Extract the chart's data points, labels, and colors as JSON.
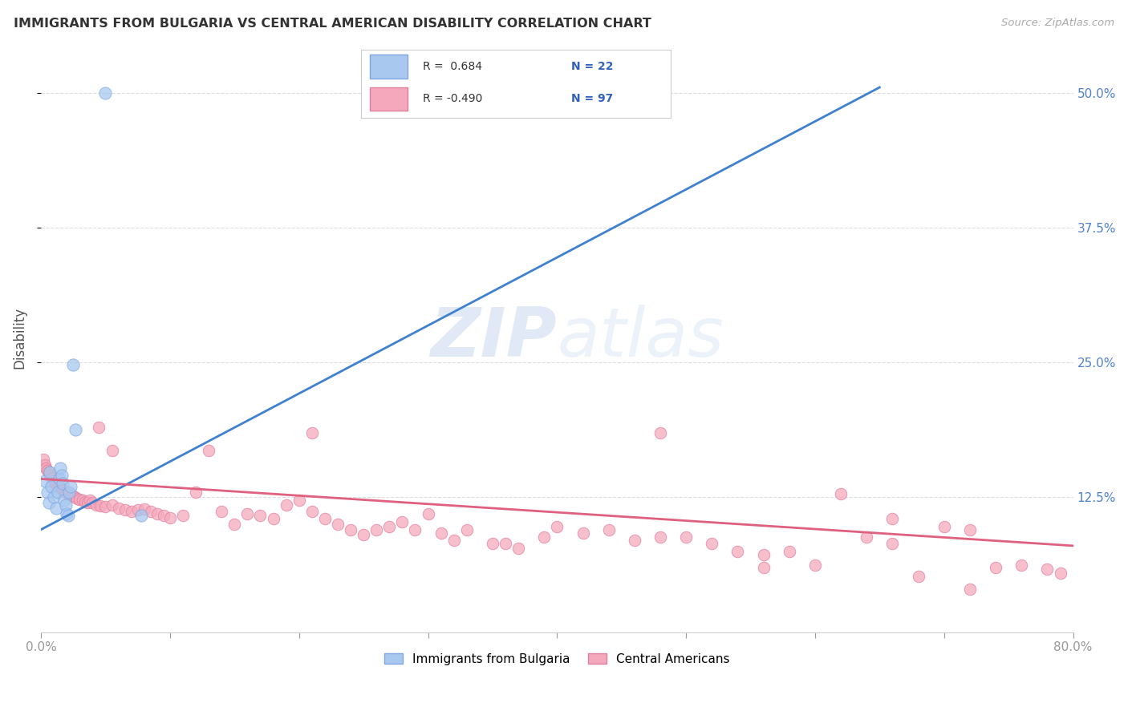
{
  "title": "IMMIGRANTS FROM BULGARIA VS CENTRAL AMERICAN DISABILITY CORRELATION CHART",
  "source": "Source: ZipAtlas.com",
  "ylabel": "Disability",
  "xlim": [
    0.0,
    0.8
  ],
  "ylim": [
    0.0,
    0.545
  ],
  "yticks": [
    0.125,
    0.25,
    0.375,
    0.5
  ],
  "ytick_labels": [
    "12.5%",
    "25.0%",
    "37.5%",
    "50.0%"
  ],
  "xticks": [
    0.0,
    0.1,
    0.2,
    0.3,
    0.4,
    0.5,
    0.6,
    0.7,
    0.8
  ],
  "xtick_labels": [
    "0.0%",
    "",
    "",
    "",
    "",
    "",
    "",
    "",
    "80.0%"
  ],
  "series1_label": "Immigrants from Bulgaria",
  "series2_label": "Central Americans",
  "series1_color": "#a8c8f0",
  "series2_color": "#f5a8bc",
  "series1_edge": "#80a8e0",
  "series2_edge": "#e080a0",
  "trend1_color": "#4080d0",
  "trend2_color": "#e06080",
  "background_color": "#ffffff",
  "legend_R1": "R =  0.684",
  "legend_N1": "N = 22",
  "legend_R2": "R = -0.490",
  "legend_N2": "N = 97",
  "legend_color": "#3060c0",
  "series1_R": 0.684,
  "series1_N": 22,
  "series2_R": -0.49,
  "series2_N": 97,
  "series1_x": [
    0.003,
    0.005,
    0.006,
    0.007,
    0.008,
    0.01,
    0.012,
    0.013,
    0.014,
    0.015,
    0.016,
    0.017,
    0.018,
    0.019,
    0.02,
    0.021,
    0.022,
    0.023,
    0.025,
    0.027,
    0.05,
    0.078
  ],
  "series1_y": [
    0.14,
    0.13,
    0.12,
    0.148,
    0.135,
    0.125,
    0.115,
    0.13,
    0.142,
    0.152,
    0.145,
    0.138,
    0.122,
    0.118,
    0.11,
    0.108,
    0.13,
    0.135,
    0.248,
    0.188,
    0.5,
    0.108
  ],
  "trend1_x0": 0.0,
  "trend1_y0": 0.095,
  "trend1_x1": 0.65,
  "trend1_y1": 0.505,
  "trend2_x0": 0.0,
  "trend2_y0": 0.142,
  "trend2_x1": 0.8,
  "trend2_y1": 0.08,
  "series2_x": [
    0.002,
    0.003,
    0.004,
    0.005,
    0.006,
    0.007,
    0.008,
    0.009,
    0.01,
    0.011,
    0.012,
    0.013,
    0.014,
    0.015,
    0.016,
    0.017,
    0.018,
    0.019,
    0.02,
    0.022,
    0.024,
    0.026,
    0.028,
    0.03,
    0.032,
    0.034,
    0.036,
    0.038,
    0.04,
    0.043,
    0.046,
    0.05,
    0.055,
    0.06,
    0.065,
    0.07,
    0.075,
    0.08,
    0.085,
    0.09,
    0.095,
    0.1,
    0.11,
    0.12,
    0.13,
    0.14,
    0.15,
    0.16,
    0.17,
    0.18,
    0.19,
    0.2,
    0.21,
    0.22,
    0.23,
    0.24,
    0.25,
    0.26,
    0.27,
    0.28,
    0.29,
    0.3,
    0.31,
    0.32,
    0.33,
    0.35,
    0.36,
    0.37,
    0.39,
    0.4,
    0.42,
    0.44,
    0.46,
    0.48,
    0.5,
    0.52,
    0.54,
    0.56,
    0.58,
    0.6,
    0.62,
    0.64,
    0.66,
    0.68,
    0.7,
    0.72,
    0.74,
    0.76,
    0.78,
    0.79,
    0.045,
    0.055,
    0.21,
    0.48,
    0.56,
    0.66,
    0.72
  ],
  "series2_y": [
    0.16,
    0.155,
    0.152,
    0.15,
    0.148,
    0.145,
    0.143,
    0.142,
    0.14,
    0.138,
    0.137,
    0.136,
    0.135,
    0.134,
    0.133,
    0.132,
    0.131,
    0.13,
    0.129,
    0.128,
    0.127,
    0.125,
    0.124,
    0.123,
    0.122,
    0.121,
    0.12,
    0.122,
    0.12,
    0.118,
    0.117,
    0.116,
    0.118,
    0.115,
    0.113,
    0.112,
    0.113,
    0.114,
    0.112,
    0.11,
    0.108,
    0.106,
    0.108,
    0.13,
    0.168,
    0.112,
    0.1,
    0.11,
    0.108,
    0.105,
    0.118,
    0.122,
    0.112,
    0.105,
    0.1,
    0.095,
    0.09,
    0.095,
    0.098,
    0.102,
    0.095,
    0.11,
    0.092,
    0.085,
    0.095,
    0.082,
    0.082,
    0.078,
    0.088,
    0.098,
    0.092,
    0.095,
    0.085,
    0.088,
    0.088,
    0.082,
    0.075,
    0.072,
    0.075,
    0.062,
    0.128,
    0.088,
    0.082,
    0.052,
    0.098,
    0.095,
    0.06,
    0.062,
    0.058,
    0.055,
    0.19,
    0.168,
    0.185,
    0.185,
    0.06,
    0.105,
    0.04
  ]
}
